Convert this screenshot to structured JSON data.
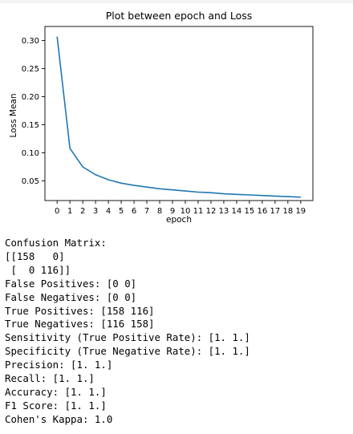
{
  "chart_data": {
    "type": "line",
    "title": "Plot between epoch and Loss",
    "xlabel": "epoch",
    "ylabel": "Loss Mean",
    "x": [
      0,
      1,
      2,
      3,
      4,
      5,
      6,
      7,
      8,
      9,
      10,
      11,
      12,
      13,
      14,
      15,
      16,
      17,
      18,
      19
    ],
    "y_ticks": [
      0.05,
      0.1,
      0.15,
      0.2,
      0.25,
      0.3
    ],
    "y_tick_labels": [
      "0.05",
      "0.10",
      "0.15",
      "0.20",
      "0.25",
      "0.30"
    ],
    "ylim": [
      0.015,
      0.325
    ],
    "xlim": [
      -0.95,
      19.95
    ],
    "grid": false,
    "color": "#1f77b4",
    "series": [
      {
        "name": "loss",
        "values": [
          0.307,
          0.108,
          0.075,
          0.061,
          0.052,
          0.046,
          0.042,
          0.039,
          0.036,
          0.034,
          0.032,
          0.03,
          0.029,
          0.027,
          0.026,
          0.025,
          0.024,
          0.023,
          0.022,
          0.021
        ]
      }
    ]
  },
  "output": {
    "lines": [
      "Confusion Matrix:",
      "[[158   0]",
      " [  0 116]]",
      "False Positives: [0 0]",
      "False Negatives: [0 0]",
      "True Positives: [158 116]",
      "True Negatives: [116 158]",
      "Sensitivity (True Positive Rate): [1. 1.]",
      "Specificity (True Negative Rate): [1. 1.]",
      "Precision: [1. 1.]",
      "Recall: [1. 1.]",
      "Accuracy: [1. 1.]",
      "F1 Score: [1. 1.]",
      "Cohen's Kappa: 1.0"
    ]
  }
}
